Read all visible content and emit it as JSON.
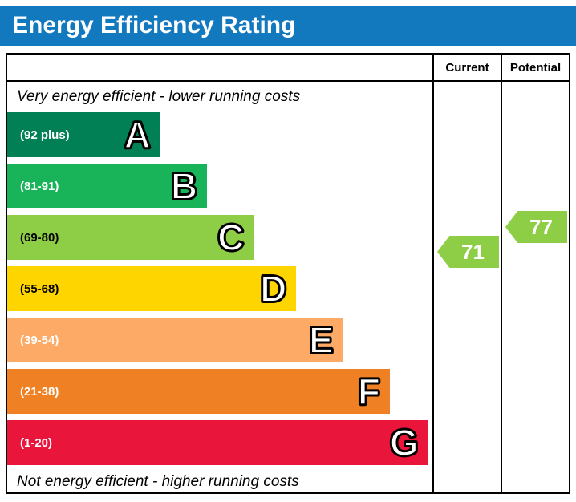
{
  "header": {
    "title": "Energy Efficiency Rating",
    "bg_color": "#1379bf"
  },
  "columns": {
    "current": "Current",
    "potential": "Potential"
  },
  "notes": {
    "top": "Very energy efficient - lower running costs",
    "bottom": "Not energy efficient - higher running costs"
  },
  "chart_data": {
    "type": "bar",
    "title": "Energy Efficiency Rating",
    "scale": {
      "min": 1,
      "max": 100
    },
    "bands": [
      {
        "letter": "A",
        "range_label": "(92 plus)",
        "min": 92,
        "max": 100,
        "color": "#008054",
        "width_pct": 36,
        "text_color": "#ffffff"
      },
      {
        "letter": "B",
        "range_label": "(81-91)",
        "min": 81,
        "max": 91,
        "color": "#19b459",
        "width_pct": 47,
        "text_color": "#ffffff"
      },
      {
        "letter": "C",
        "range_label": "(69-80)",
        "min": 69,
        "max": 80,
        "color": "#8dce46",
        "width_pct": 58,
        "text_color": "#000000"
      },
      {
        "letter": "D",
        "range_label": "(55-68)",
        "min": 55,
        "max": 68,
        "color": "#ffd500",
        "width_pct": 68,
        "text_color": "#000000"
      },
      {
        "letter": "E",
        "range_label": "(39-54)",
        "min": 39,
        "max": 54,
        "color": "#fcaa65",
        "width_pct": 79,
        "text_color": "#ffffff"
      },
      {
        "letter": "F",
        "range_label": "(21-38)",
        "min": 21,
        "max": 38,
        "color": "#ef8023",
        "width_pct": 90,
        "text_color": "#ffffff"
      },
      {
        "letter": "G",
        "range_label": "(1-20)",
        "min": 1,
        "max": 20,
        "color": "#e9153b",
        "width_pct": 99,
        "text_color": "#ffffff"
      }
    ],
    "current": {
      "value": 71
    },
    "potential": {
      "value": 77
    }
  }
}
